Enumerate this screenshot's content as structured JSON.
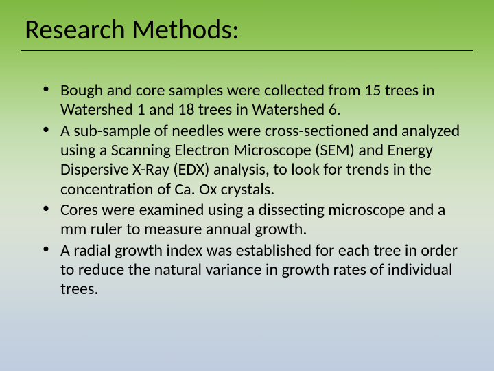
{
  "slide": {
    "title": "Research Methods:",
    "bullets": [
      "Bough and core samples were collected from 15 trees in Watershed 1 and 18 trees in Watershed 6.",
      "A sub-sample of needles were cross-sectioned and analyzed using a Scanning Electron Microscope (SEM) and Energy Dispersive X-Ray (EDX) analysis, to look for trends in the concentration of Ca. Ox crystals.",
      "Cores were examined using a dissecting microscope and a mm ruler to measure annual growth.",
      "A radial growth index was established for each tree in order to reduce the natural variance in growth rates of individual trees."
    ],
    "style": {
      "title_fontsize": 40,
      "bullet_fontsize": 24,
      "text_color": "#000000",
      "gradient_top": "#7fb843",
      "gradient_bottom": "#bfcce0",
      "font_family": "Calibri"
    }
  }
}
